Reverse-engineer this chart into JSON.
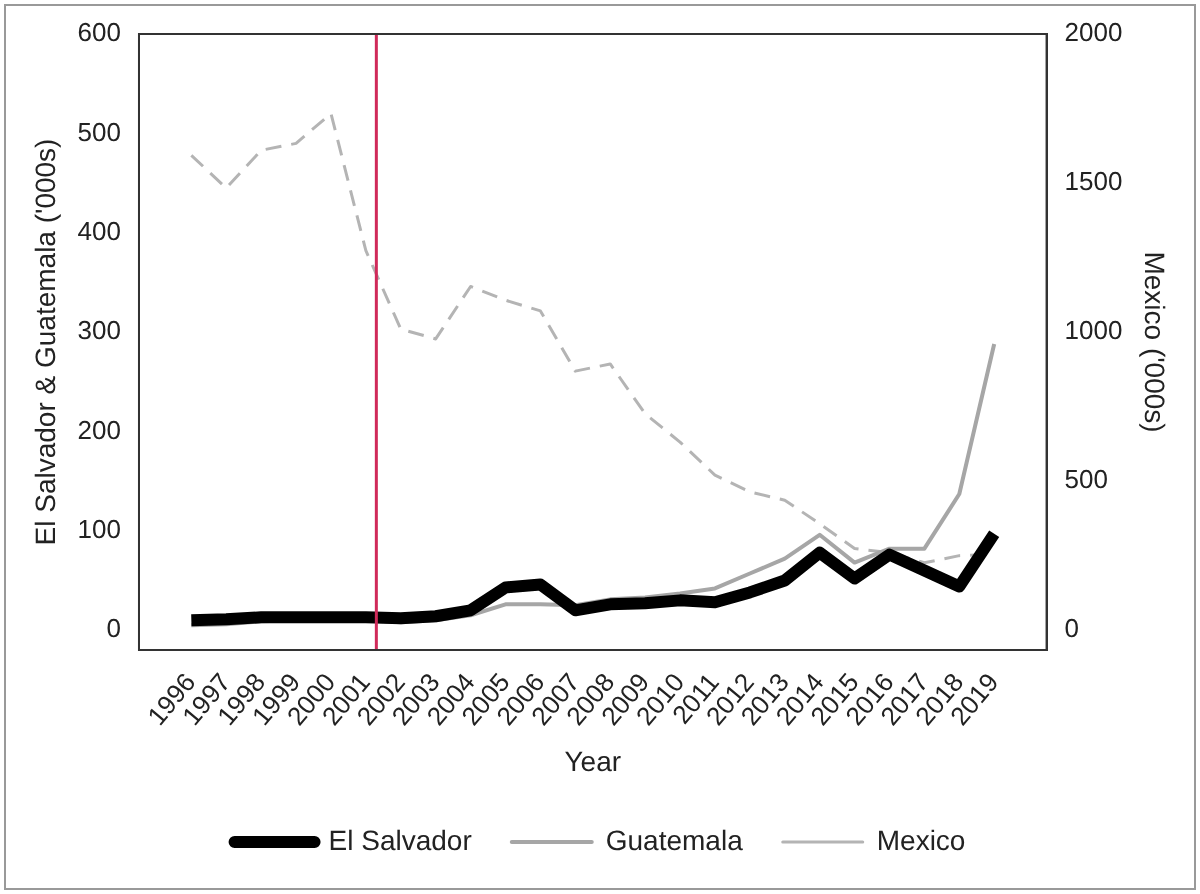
{
  "chart_data": {
    "type": "line",
    "xlabel": "Year",
    "ylabel": "El Salvador & Guatemala ('000s)",
    "y2label": "Mexico ('000s)",
    "x": [
      1996,
      1997,
      1998,
      1999,
      2000,
      2001,
      2002,
      2003,
      2004,
      2005,
      2006,
      2007,
      2008,
      2009,
      2010,
      2011,
      2012,
      2013,
      2014,
      2015,
      2016,
      2017,
      2018,
      2019
    ],
    "series": [
      {
        "name": "El Salvador",
        "color": "#000000",
        "line_style": "solid",
        "values": [
          10,
          11,
          13,
          13,
          13,
          13,
          12,
          14,
          20,
          43,
          46,
          20,
          26,
          27,
          30,
          28,
          38,
          50,
          78,
          52,
          76,
          60,
          44,
          97
        ]
      },
      {
        "name": "Guatemala",
        "color": "#a6a6a6",
        "line_style": "solid",
        "values": [
          5,
          6,
          9,
          10,
          10,
          10,
          8,
          10,
          15,
          26,
          26,
          25,
          31,
          33,
          37,
          42,
          57,
          72,
          96,
          68,
          82,
          82,
          137,
          288
        ]
      },
      {
        "name": "Mexico",
        "color": "#b4b4b4",
        "line_style": "dashed",
        "axis": "y2",
        "values": [
          1593,
          1483,
          1610,
          1633,
          1733,
          1273,
          1010,
          977,
          1153,
          1107,
          1071,
          869,
          893,
          726,
          631,
          520,
          464,
          436,
          357,
          274,
          260,
          226,
          250,
          255
        ]
      }
    ],
    "xlim": [
      1994.5,
      2020.5
    ],
    "xticks": [
      1996,
      1997,
      1998,
      1999,
      2000,
      2001,
      2002,
      2003,
      2004,
      2005,
      2006,
      2007,
      2008,
      2009,
      2010,
      2011,
      2012,
      2013,
      2014,
      2015,
      2016,
      2017,
      2018,
      2019
    ],
    "ylim": [
      -20,
      600
    ],
    "yticks": [
      0,
      100,
      200,
      300,
      400,
      500,
      600
    ],
    "y2lim": [
      -66.7,
      2000
    ],
    "y2ticks": [
      0,
      500,
      1000,
      1500,
      2000
    ],
    "ref_lines": [
      {
        "axis": "x",
        "value": 2001.3,
        "color": "#d02a5a"
      }
    ],
    "grid": false,
    "legend": "bottom",
    "marker": "none"
  }
}
